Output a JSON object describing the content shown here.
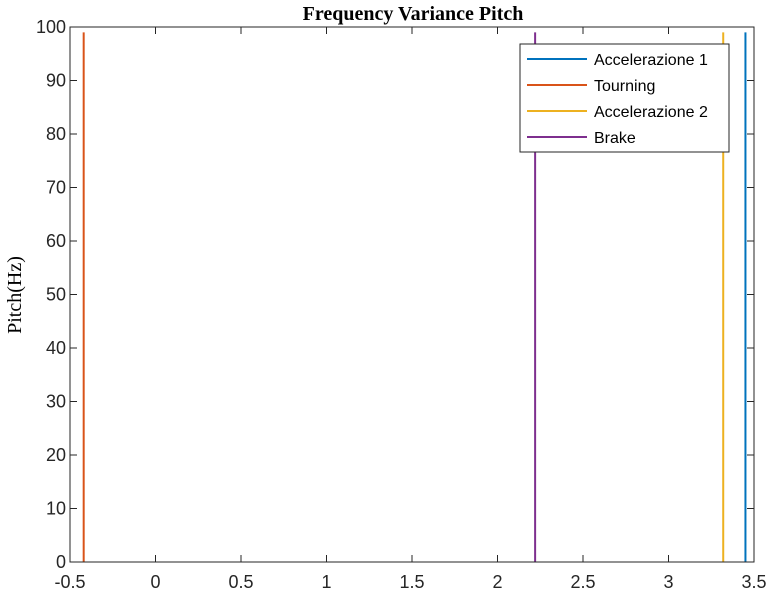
{
  "chart_data": {
    "type": "line",
    "title": "Frequency Variance Pitch",
    "xlabel": "",
    "ylabel": "Pitch(Hz)",
    "xlim": [
      -0.5,
      3.5
    ],
    "ylim": [
      0,
      100
    ],
    "xticks": [
      -0.5,
      0,
      0.5,
      1,
      1.5,
      2,
      2.5,
      3,
      3.5
    ],
    "xtick_labels": [
      "-0.5",
      "0",
      "0.5",
      "1",
      "1.5",
      "2",
      "2.5",
      "3",
      "3.5"
    ],
    "yticks": [
      0,
      10,
      20,
      30,
      40,
      50,
      60,
      70,
      80,
      90,
      100
    ],
    "ytick_labels": [
      "0",
      "10",
      "20",
      "30",
      "40",
      "50",
      "60",
      "70",
      "80",
      "90",
      "100"
    ],
    "grid": false,
    "legend_position": "top-right",
    "series": [
      {
        "name": "Accelerazione 1",
        "color": "#0072BD",
        "x": [
          3.45,
          3.45
        ],
        "y": [
          0,
          99
        ]
      },
      {
        "name": "Tourning",
        "color": "#D95319",
        "x": [
          -0.42,
          -0.42
        ],
        "y": [
          0,
          99
        ]
      },
      {
        "name": "Accelerazione 2",
        "color": "#EDB120",
        "x": [
          3.32,
          3.32
        ],
        "y": [
          0,
          99
        ]
      },
      {
        "name": "Brake",
        "color": "#7E2F8E",
        "x": [
          2.22,
          2.22
        ],
        "y": [
          0,
          99
        ]
      }
    ]
  }
}
